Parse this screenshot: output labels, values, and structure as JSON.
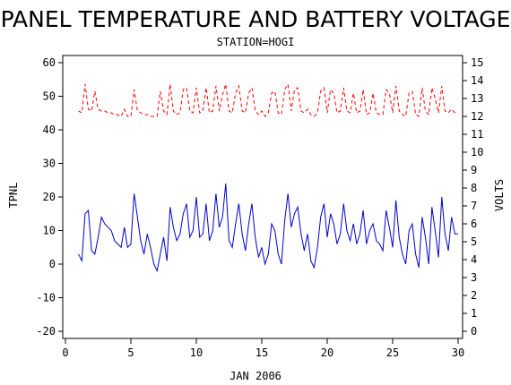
{
  "colors": {
    "background": "#ffffff",
    "axis": "#000000",
    "temperature": "#0000cc",
    "voltage": "#ff0000"
  },
  "chart_data": {
    "type": "line",
    "title": "PANEL TEMPERATURE AND BATTERY VOLTAGE",
    "subtitle": "STATION=HOGI",
    "xlabel": "JAN 2006",
    "ylabel_left": "TPNL",
    "ylabel_right": "VOLTS",
    "xlim": [
      0,
      30
    ],
    "ylim_left": [
      -20,
      60
    ],
    "ylim_right": [
      0,
      15
    ],
    "x_ticks": [
      0,
      5,
      10,
      15,
      20,
      25,
      30
    ],
    "y_ticks_left": [
      -20,
      -10,
      0,
      10,
      20,
      30,
      40,
      50,
      60
    ],
    "y_ticks_right": [
      0,
      1,
      2,
      3,
      4,
      5,
      6,
      7,
      8,
      9,
      10,
      11,
      12,
      13,
      14,
      15
    ],
    "grid": false,
    "series": [
      {
        "name": "TPNL",
        "axis": "left",
        "style": "solid",
        "x": [
          1.0,
          1.25,
          1.5,
          1.75,
          2.0,
          2.25,
          2.5,
          2.75,
          3.0,
          3.25,
          3.5,
          3.75,
          4.0,
          4.25,
          4.5,
          4.75,
          5.0,
          5.25,
          5.5,
          5.75,
          6.0,
          6.25,
          6.5,
          6.75,
          7.0,
          7.25,
          7.5,
          7.75,
          8.0,
          8.25,
          8.5,
          8.75,
          9.0,
          9.25,
          9.5,
          9.75,
          10.0,
          10.25,
          10.5,
          10.75,
          11.0,
          11.25,
          11.5,
          11.75,
          12.0,
          12.25,
          12.5,
          12.75,
          13.0,
          13.25,
          13.5,
          13.75,
          14.0,
          14.25,
          14.5,
          14.75,
          15.0,
          15.25,
          15.5,
          15.75,
          16.0,
          16.25,
          16.5,
          16.75,
          17.0,
          17.25,
          17.5,
          17.75,
          18.0,
          18.25,
          18.5,
          18.75,
          19.0,
          19.25,
          19.5,
          19.75,
          20.0,
          20.25,
          20.5,
          20.75,
          21.0,
          21.25,
          21.5,
          21.75,
          22.0,
          22.25,
          22.5,
          22.75,
          23.0,
          23.25,
          23.5,
          23.75,
          24.0,
          24.25,
          24.5,
          24.75,
          25.0,
          25.25,
          25.5,
          25.75,
          26.0,
          26.25,
          26.5,
          26.75,
          27.0,
          27.25,
          27.5,
          27.75,
          28.0,
          28.25,
          28.5,
          28.75,
          29.0,
          29.25,
          29.5,
          29.75,
          30.0
        ],
        "values": [
          3,
          1,
          15,
          16,
          4,
          3,
          8,
          14,
          12,
          11,
          10,
          7,
          6,
          5,
          11,
          5,
          6,
          21,
          14,
          7,
          3,
          9,
          5,
          0,
          -2,
          3,
          8,
          1,
          17,
          11,
          7,
          9,
          15,
          18,
          8,
          10,
          20,
          8,
          9,
          18,
          7,
          10,
          21,
          11,
          14,
          24,
          7,
          5,
          12,
          18,
          9,
          4,
          12,
          18,
          8,
          2,
          5,
          0,
          3,
          12,
          10,
          3,
          0,
          13,
          21,
          11,
          15,
          17,
          9,
          4,
          9,
          1,
          -1,
          5,
          14,
          18,
          8,
          15,
          12,
          6,
          9,
          18,
          10,
          7,
          12,
          6,
          9,
          16,
          6,
          10,
          12,
          7,
          6,
          4,
          16,
          11,
          5,
          19,
          8,
          3,
          0,
          10,
          12,
          3,
          -1,
          14,
          8,
          0,
          17,
          10,
          2,
          20,
          9,
          4,
          14,
          9,
          9
        ]
      },
      {
        "name": "VOLTS",
        "axis": "right",
        "style": "dashed",
        "x": [
          1.0,
          1.25,
          1.5,
          1.75,
          2.0,
          2.25,
          2.5,
          2.75,
          3.0,
          3.25,
          3.5,
          3.75,
          4.0,
          4.25,
          4.5,
          4.75,
          5.0,
          5.25,
          5.5,
          5.75,
          6.0,
          6.25,
          6.5,
          6.75,
          7.0,
          7.25,
          7.5,
          7.75,
          8.0,
          8.25,
          8.5,
          8.75,
          9.0,
          9.25,
          9.5,
          9.75,
          10.0,
          10.25,
          10.5,
          10.75,
          11.0,
          11.25,
          11.5,
          11.75,
          12.0,
          12.25,
          12.5,
          12.75,
          13.0,
          13.25,
          13.5,
          13.75,
          14.0,
          14.25,
          14.5,
          14.75,
          15.0,
          15.25,
          15.5,
          15.75,
          16.0,
          16.25,
          16.5,
          16.75,
          17.0,
          17.25,
          17.5,
          17.75,
          18.0,
          18.25,
          18.5,
          18.75,
          19.0,
          19.25,
          19.5,
          19.75,
          20.0,
          20.25,
          20.5,
          20.75,
          21.0,
          21.25,
          21.5,
          21.75,
          22.0,
          22.25,
          22.5,
          22.75,
          23.0,
          23.25,
          23.5,
          23.75,
          24.0,
          24.25,
          24.5,
          24.75,
          25.0,
          25.25,
          25.5,
          25.75,
          26.0,
          26.25,
          26.5,
          26.75,
          27.0,
          27.25,
          27.5,
          27.75,
          28.0,
          28.25,
          28.5,
          28.75,
          29.0,
          29.25,
          29.5,
          29.75,
          30.0
        ],
        "values": [
          12.3,
          12.2,
          13.8,
          12.4,
          12.3,
          13.4,
          12.4,
          12.3,
          12.3,
          12.2,
          12.2,
          12.1,
          12.1,
          12.0,
          12.4,
          12.0,
          12.0,
          13.5,
          12.3,
          12.2,
          12.1,
          12.1,
          12.0,
          12.0,
          12.0,
          13.4,
          12.3,
          12.1,
          13.8,
          12.3,
          12.1,
          12.2,
          13.5,
          13.6,
          12.3,
          12.2,
          13.6,
          12.2,
          12.3,
          13.6,
          12.2,
          12.3,
          13.7,
          12.3,
          13.2,
          13.8,
          12.3,
          12.2,
          13.3,
          13.7,
          12.3,
          12.2,
          13.3,
          13.6,
          12.3,
          12.1,
          12.3,
          12.0,
          12.2,
          13.3,
          13.4,
          12.2,
          12.1,
          13.5,
          13.8,
          12.3,
          13.5,
          13.6,
          12.3,
          12.2,
          12.4,
          12.1,
          12.0,
          12.2,
          13.4,
          13.6,
          12.2,
          13.5,
          13.3,
          12.2,
          12.3,
          13.6,
          12.3,
          12.2,
          13.3,
          12.2,
          12.3,
          13.5,
          12.1,
          12.2,
          13.3,
          12.2,
          12.1,
          12.1,
          13.5,
          13.3,
          12.2,
          13.7,
          12.3,
          12.1,
          12.0,
          13.3,
          13.4,
          12.1,
          12.0,
          13.6,
          12.3,
          12.1,
          13.6,
          13.0,
          12.2,
          13.7,
          12.3,
          12.2,
          12.4,
          12.2,
          12.2
        ]
      }
    ]
  }
}
